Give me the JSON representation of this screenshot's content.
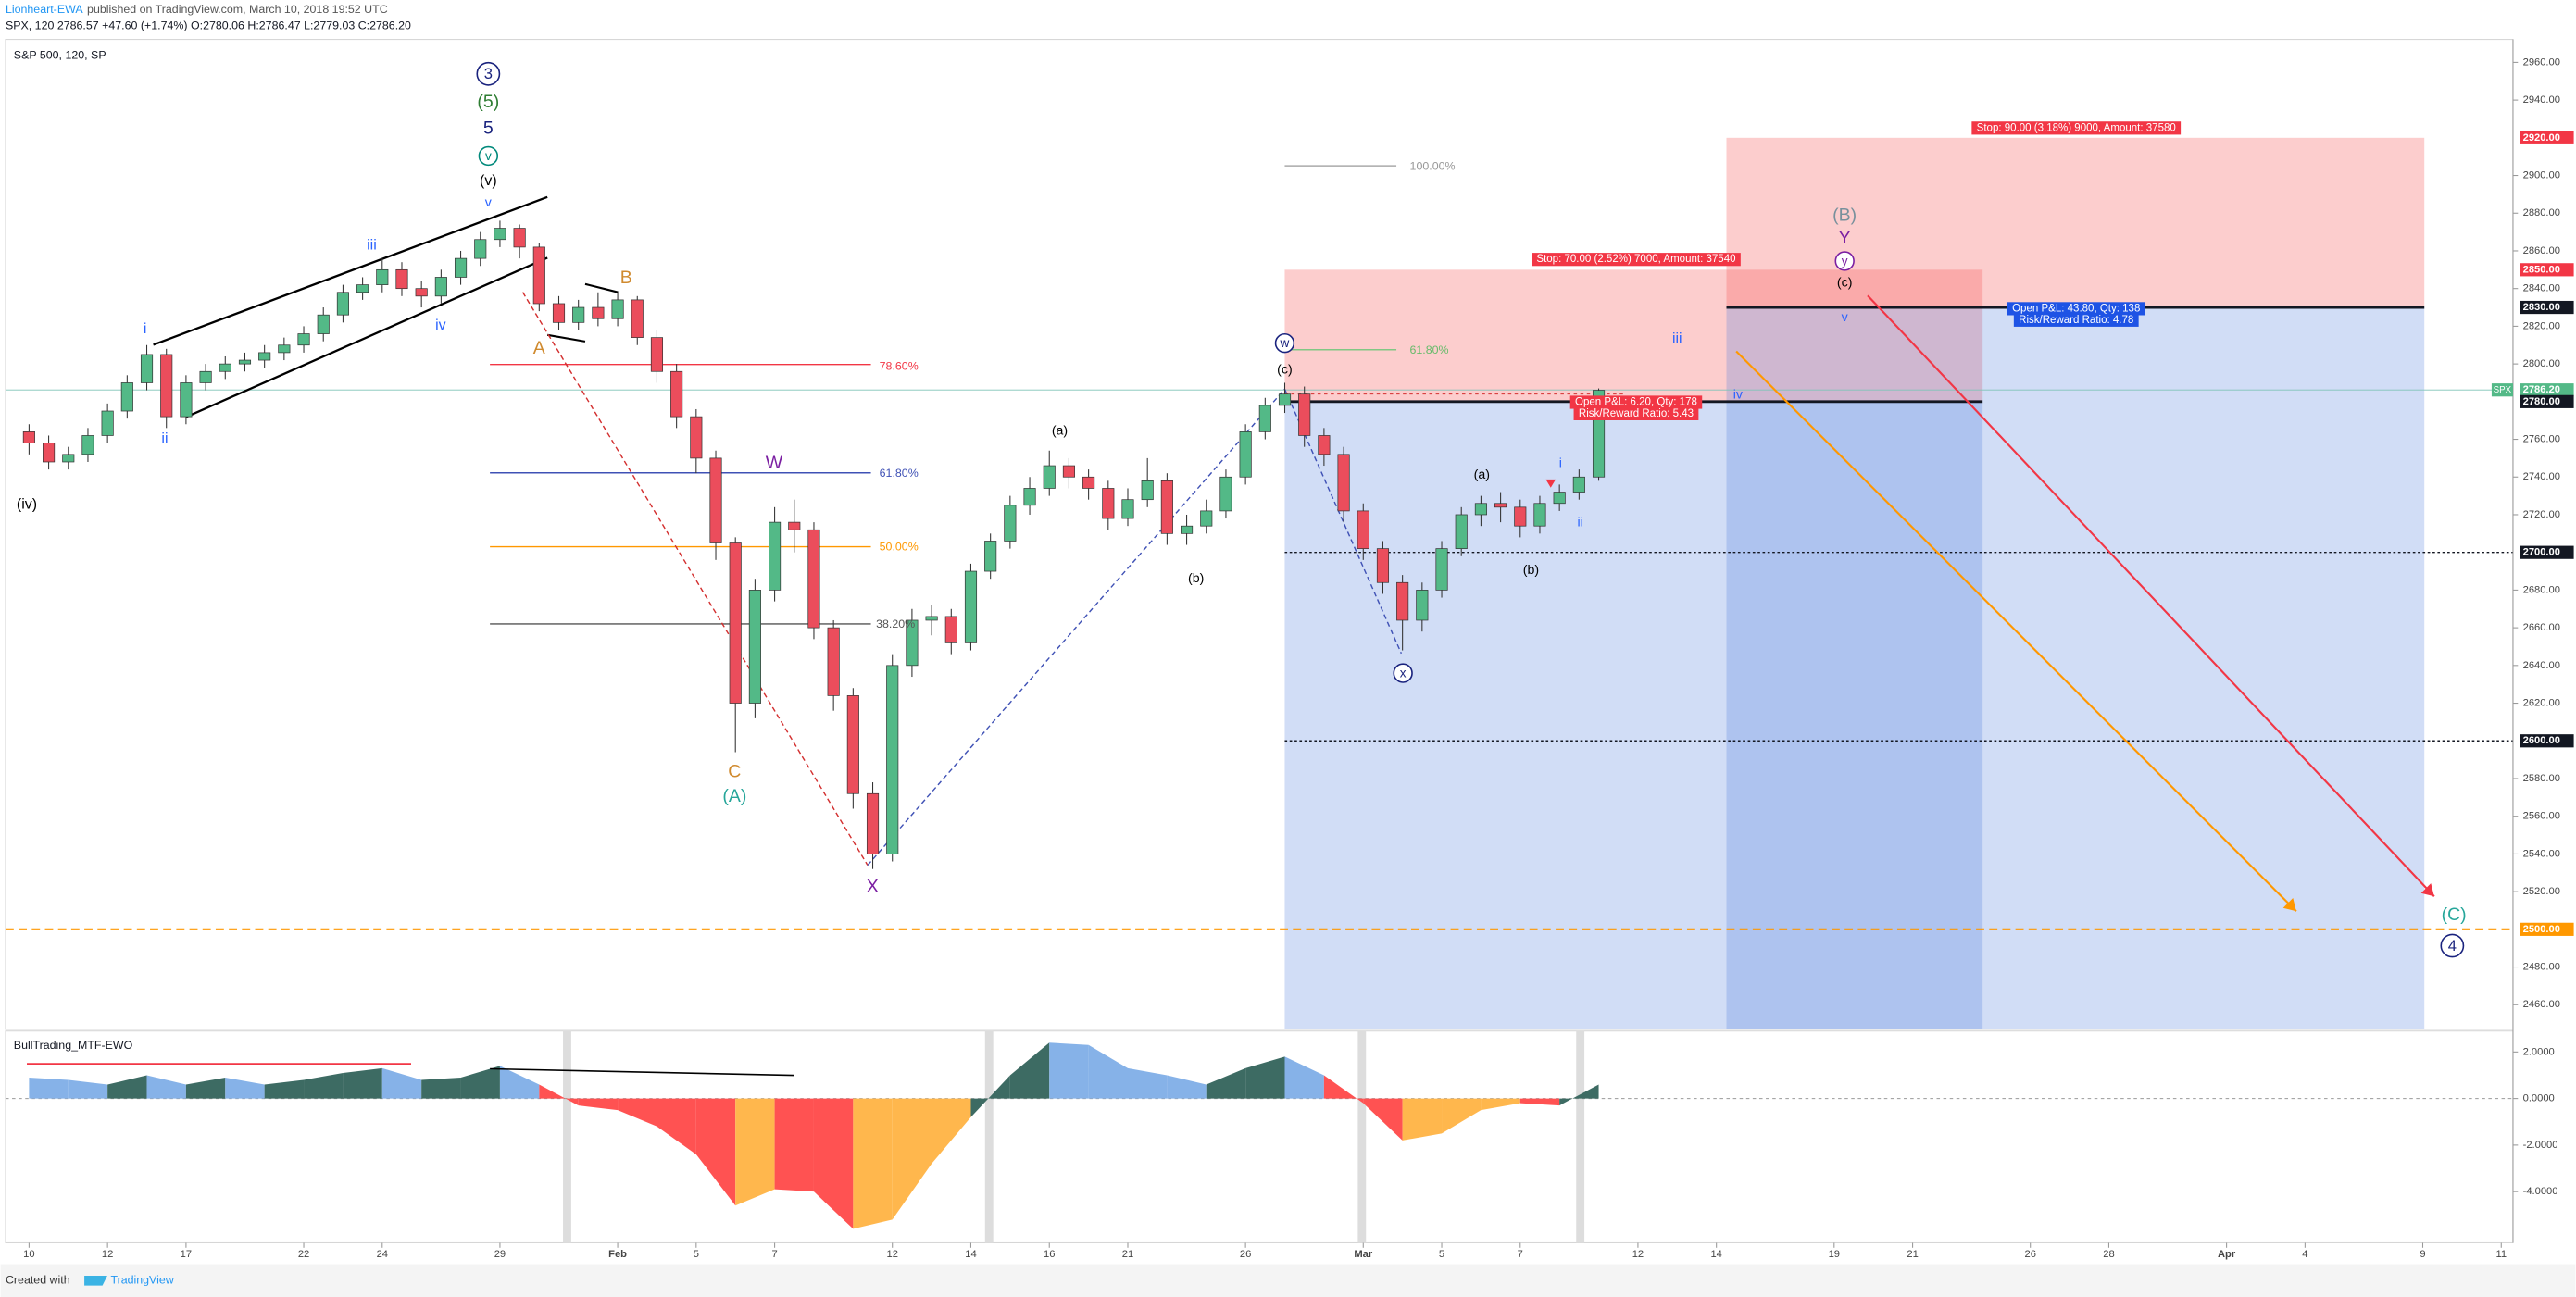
{
  "header": {
    "author": "Lionheart-EWA",
    "published": "published on TradingView.com, March 10, 2018 19:52 UTC",
    "quote": "SPX, 120  2786.57  +47.60 (+1.74%) O:2780.06 H:2786.47 L:2779.03 C:2786.20"
  },
  "footer": {
    "created": "Created with",
    "brand": "TradingView"
  },
  "chart_data": {
    "type": "candlestick",
    "title": "S&P 500, 120, SP",
    "x": [
      0,
      0.5,
      1,
      1.5,
      2,
      2.5,
      3,
      3.5,
      4,
      4.5,
      5,
      5.5,
      6,
      6.5,
      7,
      7.5,
      8,
      8.5,
      9,
      9.5,
      10,
      10.5,
      11,
      11.5,
      12,
      12.5,
      13,
      13.5,
      14,
      14.5,
      15,
      15.5,
      16,
      16.5,
      17,
      17.5,
      18,
      18.5,
      19,
      19.5,
      20,
      20.5,
      21,
      21.5,
      22,
      22.5,
      23,
      23.5,
      24,
      24.5,
      25,
      25.5,
      26,
      26.5,
      27,
      27.5,
      28,
      28.5,
      29,
      29.5,
      30,
      30.5,
      31,
      31.5,
      32,
      32.5,
      33,
      33.5,
      34,
      34.5,
      35,
      35.5,
      36,
      36.5,
      37,
      37.5,
      38,
      38.5,
      39,
      39.5,
      40
    ],
    "open": [
      2764,
      2758,
      2748,
      2752,
      2762,
      2775,
      2790,
      2805,
      2772,
      2790,
      2796,
      2800,
      2802,
      2806,
      2810,
      2816,
      2826,
      2838,
      2842,
      2850,
      2840,
      2836,
      2846,
      2856,
      2866,
      2872,
      2862,
      2832,
      2822,
      2830,
      2824,
      2834,
      2814,
      2796,
      2772,
      2750,
      2705,
      2620,
      2680,
      2716,
      2712,
      2660,
      2624,
      2572,
      2540,
      2640,
      2664,
      2666,
      2652,
      2690,
      2706,
      2725,
      2734,
      2746,
      2740,
      2734,
      2718,
      2728,
      2738,
      2710,
      2714,
      2722,
      2740,
      2764,
      2778,
      2784,
      2762,
      2752,
      2722,
      2702,
      2684,
      2664,
      2680,
      2702,
      2720,
      2726,
      2724,
      2714,
      2726,
      2732,
      2740
    ],
    "high": [
      2768,
      2762,
      2756,
      2766,
      2779,
      2794,
      2810,
      2808,
      2794,
      2800,
      2804,
      2806,
      2810,
      2814,
      2820,
      2830,
      2842,
      2846,
      2856,
      2854,
      2844,
      2850,
      2860,
      2870,
      2876,
      2874,
      2864,
      2836,
      2834,
      2838,
      2838,
      2836,
      2818,
      2800,
      2776,
      2754,
      2708,
      2686,
      2724,
      2728,
      2716,
      2664,
      2628,
      2578,
      2646,
      2670,
      2672,
      2670,
      2694,
      2710,
      2730,
      2740,
      2754,
      2750,
      2744,
      2738,
      2734,
      2750,
      2742,
      2720,
      2728,
      2744,
      2768,
      2782,
      2790,
      2788,
      2766,
      2756,
      2726,
      2706,
      2688,
      2684,
      2706,
      2724,
      2730,
      2732,
      2728,
      2730,
      2736,
      2744,
      2787
    ],
    "low": [
      2752,
      2744,
      2744,
      2748,
      2758,
      2771,
      2786,
      2766,
      2768,
      2786,
      2792,
      2796,
      2798,
      2802,
      2806,
      2812,
      2822,
      2834,
      2838,
      2836,
      2830,
      2832,
      2842,
      2852,
      2862,
      2856,
      2828,
      2818,
      2818,
      2820,
      2820,
      2810,
      2790,
      2766,
      2742,
      2696,
      2594,
      2612,
      2674,
      2700,
      2654,
      2616,
      2564,
      2532,
      2536,
      2634,
      2656,
      2646,
      2648,
      2686,
      2702,
      2720,
      2730,
      2734,
      2728,
      2712,
      2714,
      2724,
      2704,
      2704,
      2710,
      2718,
      2736,
      2760,
      2774,
      2756,
      2746,
      2716,
      2696,
      2678,
      2648,
      2658,
      2676,
      2698,
      2714,
      2716,
      2708,
      2710,
      2722,
      2728,
      2738
    ],
    "close": [
      2758,
      2748,
      2752,
      2762,
      2775,
      2790,
      2805,
      2772,
      2790,
      2796,
      2800,
      2802,
      2806,
      2810,
      2816,
      2826,
      2838,
      2842,
      2850,
      2840,
      2836,
      2846,
      2856,
      2866,
      2872,
      2862,
      2832,
      2822,
      2830,
      2824,
      2834,
      2814,
      2796,
      2772,
      2750,
      2705,
      2620,
      2680,
      2716,
      2712,
      2660,
      2624,
      2572,
      2540,
      2640,
      2664,
      2666,
      2652,
      2690,
      2706,
      2725,
      2734,
      2746,
      2740,
      2734,
      2718,
      2728,
      2738,
      2710,
      2714,
      2722,
      2740,
      2764,
      2778,
      2784,
      2762,
      2752,
      2722,
      2702,
      2684,
      2664,
      2680,
      2702,
      2720,
      2726,
      2724,
      2714,
      2726,
      2732,
      2740,
      2786
    ],
    "colors": {
      "up": "#53b987",
      "down": "#eb4d5c"
    },
    "xlim": [
      -0.6,
      63.3
    ],
    "xticks": [
      {
        "value": 0,
        "label": "10"
      },
      {
        "value": 2,
        "label": "12"
      },
      {
        "value": 4,
        "label": "17"
      },
      {
        "value": 7,
        "label": "22"
      },
      {
        "value": 9,
        "label": "24"
      },
      {
        "value": 12,
        "label": "29"
      },
      {
        "value": 15,
        "label": "Feb"
      },
      {
        "value": 17,
        "label": "5"
      },
      {
        "value": 19,
        "label": "7"
      },
      {
        "value": 22,
        "label": "12"
      },
      {
        "value": 24,
        "label": "14"
      },
      {
        "value": 26,
        "label": "16"
      },
      {
        "value": 28,
        "label": "21"
      },
      {
        "value": 31,
        "label": "26"
      },
      {
        "value": 34,
        "label": "Mar"
      },
      {
        "value": 36,
        "label": "5"
      },
      {
        "value": 38,
        "label": "7"
      },
      {
        "value": 41,
        "label": "12"
      },
      {
        "value": 43,
        "label": "14"
      },
      {
        "value": 46,
        "label": "19"
      },
      {
        "value": 48,
        "label": "21"
      },
      {
        "value": 51,
        "label": "26"
      },
      {
        "value": 53,
        "label": "28"
      },
      {
        "value": 56,
        "label": "Apr"
      },
      {
        "value": 58,
        "label": "4"
      },
      {
        "value": 61,
        "label": "9"
      },
      {
        "value": 63,
        "label": "11"
      }
    ],
    "ylim": [
      2446.9,
      2972.2
    ],
    "yticks": [
      {
        "value": 2460,
        "label": "2460.00"
      },
      {
        "value": 2480,
        "label": "2480.00"
      },
      {
        "value": 2520,
        "label": "2520.00"
      },
      {
        "value": 2540,
        "label": "2540.00"
      },
      {
        "value": 2560,
        "label": "2560.00"
      },
      {
        "value": 2580,
        "label": "2580.00"
      },
      {
        "value": 2620,
        "label": "2620.00"
      },
      {
        "value": 2640,
        "label": "2640.00"
      },
      {
        "value": 2660,
        "label": "2660.00"
      },
      {
        "value": 2680,
        "label": "2680.00"
      },
      {
        "value": 2720,
        "label": "2720.00"
      },
      {
        "value": 2740,
        "label": "2740.00"
      },
      {
        "value": 2760,
        "label": "2760.00"
      },
      {
        "value": 2800,
        "label": "2800.00"
      },
      {
        "value": 2820,
        "label": "2820.00"
      },
      {
        "value": 2840,
        "label": "2840.00"
      },
      {
        "value": 2860,
        "label": "2860.00"
      },
      {
        "value": 2880,
        "label": "2880.00"
      },
      {
        "value": 2900,
        "label": "2900.00"
      },
      {
        "value": 2940,
        "label": "2940.00"
      },
      {
        "value": 2960,
        "label": "2960.00"
      }
    ],
    "grid": false,
    "levels": [
      {
        "value": 2920,
        "label": "2920.00",
        "color": "#f23645"
      },
      {
        "value": 2850,
        "label": "2850.00",
        "color": "#f23645"
      },
      {
        "value": 2830,
        "label": "2830.00",
        "color": "#131722"
      },
      {
        "value": 2786.2,
        "label": "2786.20",
        "name": "SPX",
        "color": "#53b987"
      },
      {
        "value": 2780,
        "label": "2780.00",
        "color": "#131722"
      },
      {
        "value": 2700,
        "label": "2700.00",
        "color": "#131722"
      },
      {
        "value": 2600,
        "label": "2600.00",
        "color": "#131722"
      },
      {
        "value": 2500,
        "label": "2500.00",
        "color": "#ff9800"
      }
    ],
    "position_labels": [
      "Stop: 90.00 (3.18%) 9000, Amount: 37580",
      "Stop: 70.00 (2.52%) 7000, Amount: 37540",
      "Open P&L: 43.80, Qty: 138",
      "Risk/Reward Ratio: 4.78",
      "Open P&L: 6.20, Qty: 178",
      "Risk/Reward Ratio: 5.43"
    ],
    "annotations": [
      "3",
      "(5)",
      "5",
      "v",
      "(v)",
      "v",
      "iii",
      "i",
      "ii",
      "iv",
      "(iv)",
      "A",
      "B",
      "C",
      "(A)",
      "W",
      "X",
      "(a)",
      "(b)",
      "(c)",
      "w",
      "(a)",
      "(b)",
      "x",
      "i",
      "ii",
      "iii",
      "iv",
      "(B)",
      "Y",
      "y",
      "(c)",
      "v",
      "(C)",
      "4",
      "78.60%",
      "61.80%",
      "50.00%",
      "38.20%",
      "100.00%",
      "61.80%"
    ],
    "indicator": {
      "title": "BullTrading_MTF-EWO",
      "x": [
        0,
        1,
        2,
        3,
        4,
        5,
        6,
        7,
        8,
        9,
        10,
        11,
        12,
        13,
        14,
        15,
        16,
        17,
        18,
        19,
        20,
        21,
        22,
        23,
        24,
        25,
        26,
        27,
        28,
        29,
        30,
        31,
        32,
        33,
        34,
        35,
        36,
        37,
        38,
        39,
        40
      ],
      "values": [
        0.9,
        0.8,
        0.6,
        1.0,
        0.6,
        0.9,
        0.6,
        0.8,
        1.1,
        1.3,
        0.8,
        0.9,
        1.4,
        0.6,
        -0.3,
        -0.5,
        -1.2,
        -2.4,
        -4.6,
        -3.9,
        -4.0,
        -5.6,
        -5.2,
        -2.8,
        -0.8,
        1.0,
        2.4,
        2.3,
        1.3,
        1.0,
        0.6,
        1.3,
        1.8,
        1.0,
        -0.2,
        -1.8,
        -1.5,
        -0.5,
        -0.2,
        -0.3,
        0.6
      ],
      "ylim": [
        -6.2,
        2.9
      ],
      "yticks": [
        {
          "value": 2,
          "label": "2.0000"
        },
        {
          "value": 0,
          "label": "0.0000"
        },
        {
          "value": -2,
          "label": "-2.0000"
        },
        {
          "value": -4,
          "label": "-4.0000"
        }
      ],
      "colors": {
        "up_rising": "#3d6b63",
        "up_falling": "#86b2e8",
        "down_falling": "#ff5252",
        "down_rising": "#ffb74d"
      }
    }
  }
}
